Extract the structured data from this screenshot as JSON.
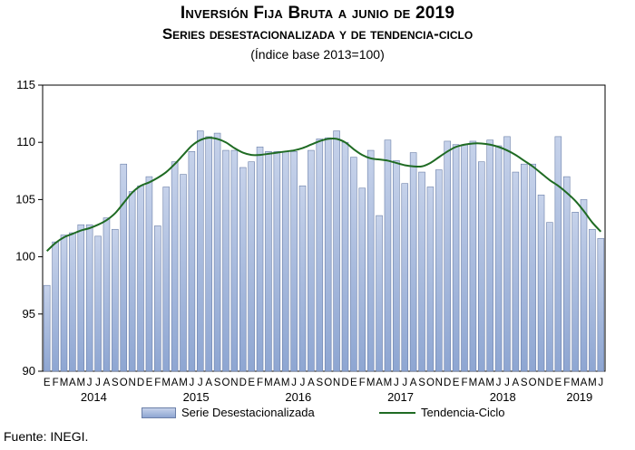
{
  "header": {
    "title": "Inversión Fija Bruta a junio de 2019",
    "subtitle": "Series desestacionalizada y de tendencia-ciclo",
    "note": "(Índice base 2013=100)"
  },
  "source": "Fuente: INEGI.",
  "colors": {
    "bar_top": "#c6d2ea",
    "bar_bottom": "#8ea6d2",
    "bar_border": "#6b7fa8",
    "trend": "#1f6b23"
  },
  "chart_data": {
    "type": "bar",
    "ylim": [
      90,
      115
    ],
    "yticks": [
      90,
      95,
      100,
      105,
      110,
      115
    ],
    "grid": false,
    "legend_position": "bottom",
    "month_labels": [
      "E",
      "F",
      "M",
      "A",
      "M",
      "J",
      "J",
      "A",
      "S",
      "O",
      "N",
      "D",
      "E",
      "F",
      "M",
      "A",
      "M",
      "J",
      "J",
      "A",
      "S",
      "O",
      "N",
      "D",
      "E",
      "F",
      "M",
      "A",
      "M",
      "J",
      "J",
      "A",
      "S",
      "O",
      "N",
      "D",
      "E",
      "F",
      "M",
      "A",
      "M",
      "J",
      "J",
      "A",
      "S",
      "O",
      "N",
      "D",
      "E",
      "F",
      "M",
      "A",
      "M",
      "J",
      "J",
      "A",
      "S",
      "O",
      "N",
      "D",
      "E",
      "F",
      "M",
      "A",
      "M",
      "J"
    ],
    "year_labels": [
      {
        "label": "2014",
        "start_index": 0
      },
      {
        "label": "2015",
        "start_index": 12
      },
      {
        "label": "2016",
        "start_index": 24
      },
      {
        "label": "2017",
        "start_index": 36
      },
      {
        "label": "2018",
        "start_index": 48
      },
      {
        "label": "2019",
        "start_index": 60
      }
    ],
    "series": [
      {
        "name": "Serie Desestacionalizada",
        "kind": "bar",
        "values": [
          97.5,
          101.3,
          101.9,
          102.1,
          102.8,
          102.8,
          101.8,
          103.4,
          102.4,
          108.1,
          105.7,
          106.2,
          107.0,
          102.7,
          106.1,
          108.3,
          107.2,
          109.2,
          111.0,
          110.5,
          110.8,
          109.3,
          109.3,
          107.8,
          108.3,
          109.6,
          109.2,
          109.2,
          109.2,
          109.2,
          106.2,
          109.3,
          110.3,
          110.4,
          111.0,
          110.0,
          108.7,
          106.0,
          109.3,
          103.6,
          110.2,
          108.4,
          106.4,
          109.1,
          107.4,
          106.1,
          107.6,
          110.1,
          109.8,
          109.8,
          110.1,
          108.3,
          110.2,
          109.7,
          110.5,
          107.4,
          108.1,
          108.1,
          105.4,
          103.0,
          110.5,
          107.0,
          103.9,
          105.0,
          102.4,
          101.6
        ]
      },
      {
        "name": "Tendencia-Ciclo",
        "kind": "line",
        "values": [
          100.5,
          101.2,
          101.7,
          102.0,
          102.3,
          102.5,
          102.8,
          103.2,
          103.8,
          104.7,
          105.6,
          106.2,
          106.5,
          106.9,
          107.4,
          108.1,
          108.9,
          109.7,
          110.2,
          110.4,
          110.3,
          110.0,
          109.5,
          109.1,
          108.9,
          108.9,
          109.0,
          109.1,
          109.2,
          109.3,
          109.5,
          109.8,
          110.1,
          110.3,
          110.3,
          110.0,
          109.4,
          108.9,
          108.6,
          108.5,
          108.4,
          108.2,
          108.0,
          107.9,
          107.9,
          108.2,
          108.7,
          109.2,
          109.6,
          109.8,
          109.9,
          109.9,
          109.8,
          109.6,
          109.3,
          108.9,
          108.4,
          107.9,
          107.3,
          106.7,
          106.2,
          105.6,
          104.9,
          104.0,
          103.0,
          102.2
        ]
      }
    ]
  }
}
